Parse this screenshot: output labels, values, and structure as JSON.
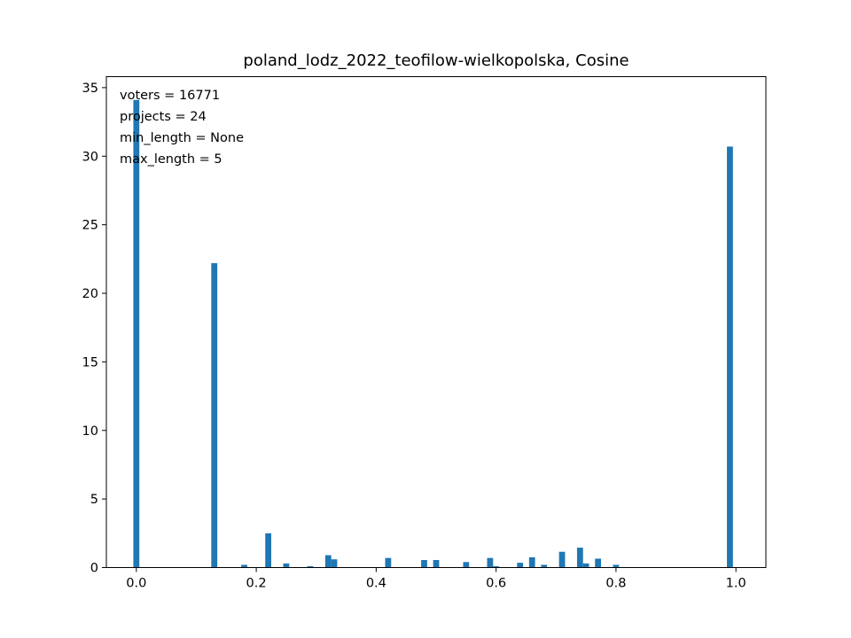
{
  "chart_data": {
    "type": "bar",
    "title": "poland_lodz_2022_teofilow-wielkopolska, Cosine",
    "xlabel": "",
    "ylabel": "",
    "xlim": [
      -0.05,
      1.05
    ],
    "ylim": [
      0,
      35.8
    ],
    "xticks": [
      0.0,
      0.2,
      0.4,
      0.6,
      0.8,
      1.0
    ],
    "xtick_labels": [
      "0.0",
      "0.2",
      "0.4",
      "0.6",
      "0.8",
      "1.0"
    ],
    "yticks": [
      0,
      5,
      10,
      15,
      20,
      25,
      30,
      35
    ],
    "ytick_labels": [
      "0",
      "5",
      "10",
      "15",
      "20",
      "25",
      "30",
      "35"
    ],
    "bar_width": 0.01,
    "color": "#1f77b4",
    "grid": false,
    "annotations": [
      "voters = 16771",
      "projects = 24",
      "min_length = None",
      "max_length = 5"
    ],
    "bars": [
      {
        "x": 0.0,
        "y": 34.1
      },
      {
        "x": 0.13,
        "y": 22.2
      },
      {
        "x": 0.18,
        "y": 0.2
      },
      {
        "x": 0.22,
        "y": 2.5
      },
      {
        "x": 0.25,
        "y": 0.3
      },
      {
        "x": 0.29,
        "y": 0.1
      },
      {
        "x": 0.32,
        "y": 0.9
      },
      {
        "x": 0.33,
        "y": 0.6
      },
      {
        "x": 0.42,
        "y": 0.7
      },
      {
        "x": 0.48,
        "y": 0.55
      },
      {
        "x": 0.5,
        "y": 0.55
      },
      {
        "x": 0.55,
        "y": 0.4
      },
      {
        "x": 0.59,
        "y": 0.7
      },
      {
        "x": 0.6,
        "y": 0.1
      },
      {
        "x": 0.64,
        "y": 0.35
      },
      {
        "x": 0.66,
        "y": 0.75
      },
      {
        "x": 0.68,
        "y": 0.2
      },
      {
        "x": 0.71,
        "y": 1.15
      },
      {
        "x": 0.74,
        "y": 1.45
      },
      {
        "x": 0.75,
        "y": 0.3
      },
      {
        "x": 0.77,
        "y": 0.65
      },
      {
        "x": 0.8,
        "y": 0.2
      },
      {
        "x": 0.99,
        "y": 30.7
      }
    ]
  }
}
